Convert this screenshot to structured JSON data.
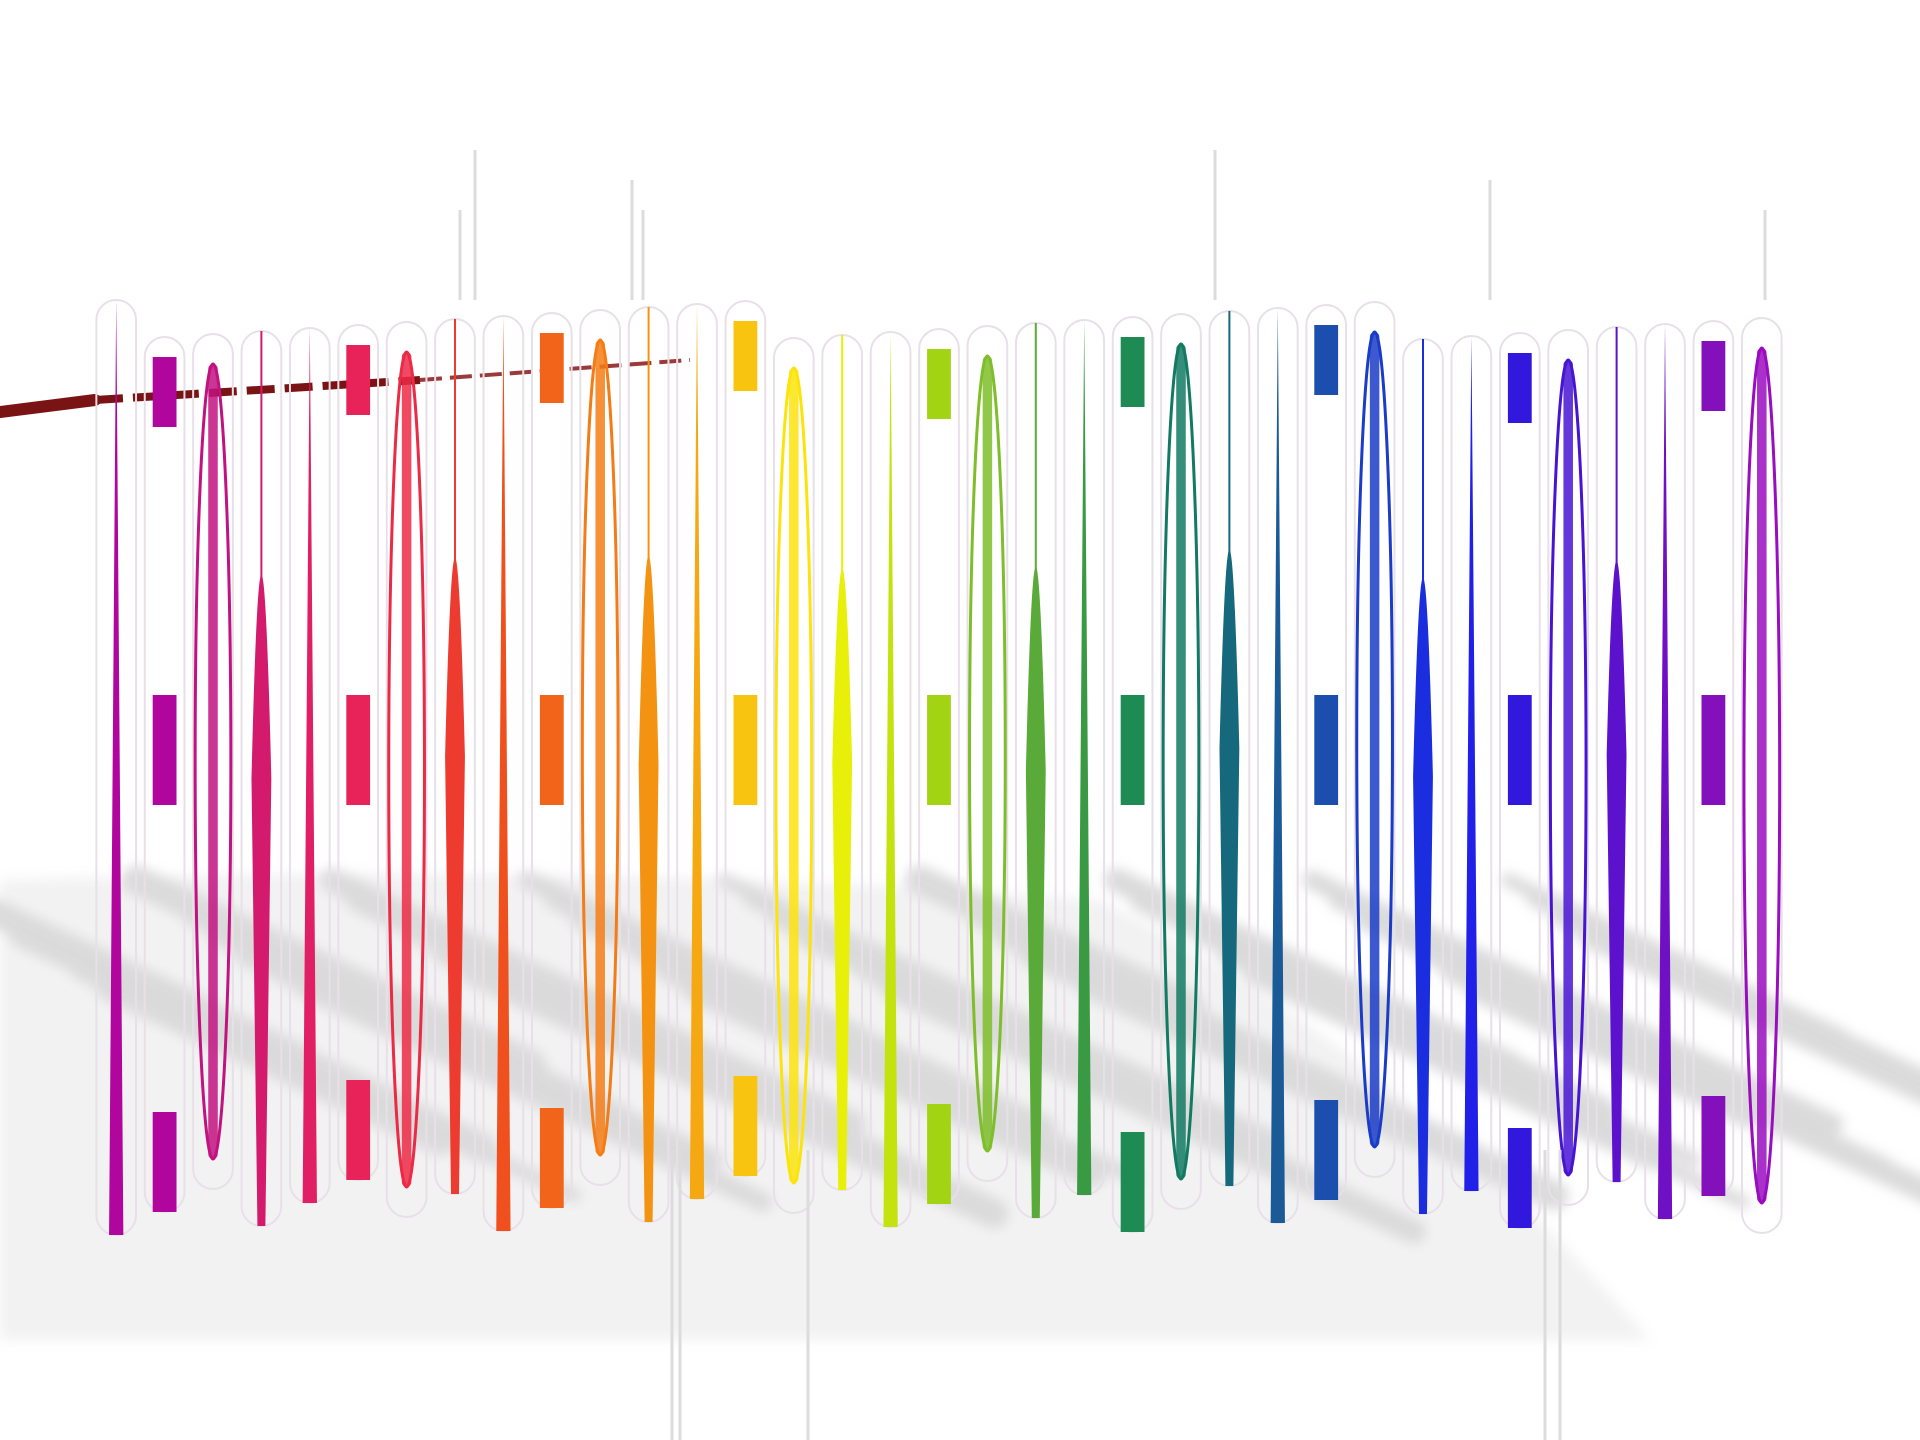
{
  "scene": {
    "kind": "abstract graphic",
    "background_color": "#ffffff",
    "shadow_color": "#bdbdbd",
    "outline_color": "#e8e0e8",
    "thread_color": "#7a1414",
    "glyph_colors": [
      "#b0069e",
      "#b0069e",
      "#c21280",
      "#d31a6c",
      "#e01f64",
      "#e8235a",
      "#ec2a46",
      "#ee3b30",
      "#f0501e",
      "#f2641a",
      "#f47c16",
      "#f49212",
      "#f6a812",
      "#f8c410",
      "#fbe40c",
      "#e8f00a",
      "#c4e20e",
      "#a2d414",
      "#7fbe2a",
      "#5aaa3a",
      "#3a9a44",
      "#1e8a54",
      "#127a62",
      "#16697c",
      "#1a5a96",
      "#1c4eae",
      "#1a3cc8",
      "#1a2ee0",
      "#2020e8",
      "#3218dc",
      "#4814d4",
      "#5c12cc",
      "#7010c4",
      "#8410bc",
      "#9a0cc0"
    ]
  }
}
